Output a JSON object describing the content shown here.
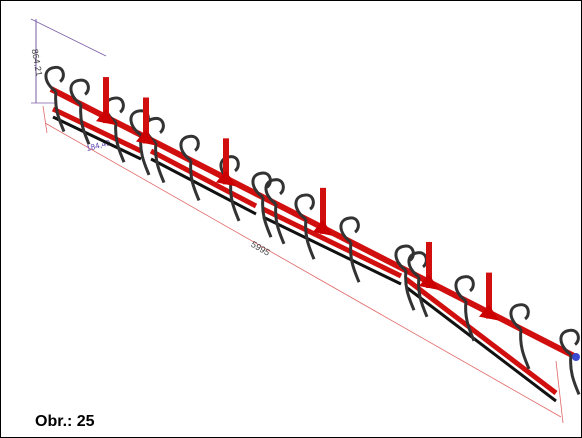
{
  "dimensions": {
    "height": "864.21",
    "spacing": "184,49",
    "length": "5995"
  },
  "caption": "Obr.: 25"
}
